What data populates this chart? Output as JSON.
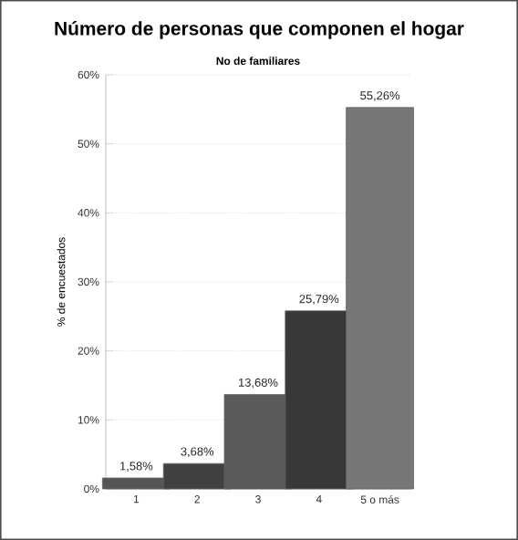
{
  "chart_data": {
    "type": "bar",
    "title": "Número de personas que componen el hogar",
    "subtitle": "No de familiares",
    "ylabel": "% de encuestados",
    "categories": [
      "1",
      "2",
      "3",
      "4",
      "5 o más"
    ],
    "values": [
      1.58,
      3.68,
      13.68,
      25.79,
      55.26
    ],
    "colors": [
      "#555555",
      "#404040",
      "#5a5a5a",
      "#383838",
      "#777777"
    ],
    "value_labels": [
      "1,58%",
      "3,68%",
      "13,68%",
      "25,79%",
      "55,26%"
    ],
    "ylim": [
      0,
      60
    ],
    "yticks": [
      {
        "value": 0,
        "label": "0%"
      },
      {
        "value": 10,
        "label": "10%"
      },
      {
        "value": 20,
        "label": "20%"
      },
      {
        "value": 30,
        "label": "30%"
      },
      {
        "value": 40,
        "label": "40%"
      },
      {
        "value": 50,
        "label": "50%"
      },
      {
        "value": 60,
        "label": "60%"
      }
    ],
    "grid": "y"
  }
}
